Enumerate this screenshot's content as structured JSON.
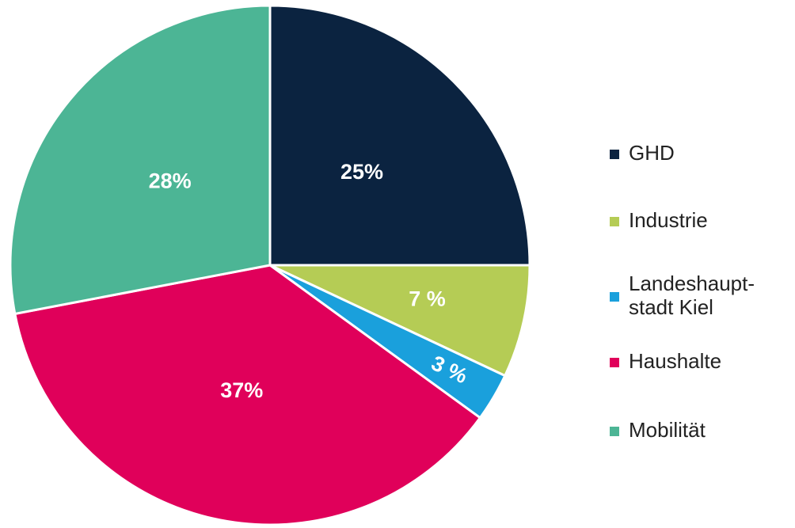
{
  "chart_data": {
    "type": "pie",
    "categories": [
      "GHD",
      "Industrie",
      "Landeshaupt-\nstadt Kiel",
      "Haushalte",
      "Mobilität"
    ],
    "values": [
      25,
      7,
      3,
      37,
      28
    ],
    "value_labels": [
      "25%",
      "7 %",
      "3 %",
      "37%",
      "28%"
    ],
    "colors": [
      "#0b2340",
      "#b5cc55",
      "#1aa0dc",
      "#e0005a",
      "#4cb595"
    ],
    "legend": "right"
  }
}
